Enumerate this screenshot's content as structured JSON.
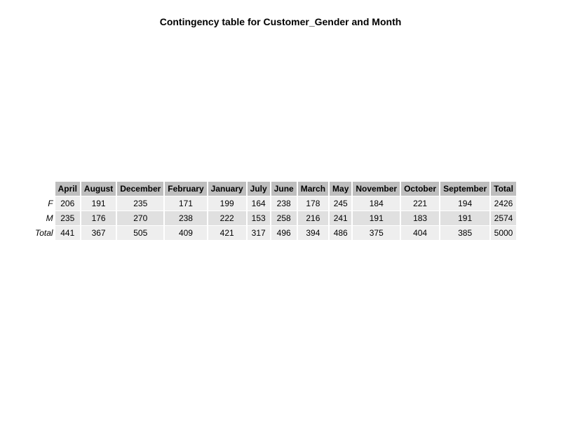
{
  "chart_data": {
    "type": "table",
    "title": "Contingency table for Customer_Gender and Month",
    "columns": [
      "April",
      "August",
      "December",
      "February",
      "January",
      "July",
      "June",
      "March",
      "May",
      "November",
      "October",
      "September",
      "Total"
    ],
    "rows": [
      {
        "label": "F",
        "values": [
          206,
          191,
          235,
          171,
          199,
          164,
          238,
          178,
          245,
          184,
          221,
          194,
          2426
        ]
      },
      {
        "label": "M",
        "values": [
          235,
          176,
          270,
          238,
          222,
          153,
          258,
          216,
          241,
          191,
          183,
          191,
          2574
        ]
      },
      {
        "label": "Total",
        "values": [
          441,
          367,
          505,
          409,
          421,
          317,
          496,
          394,
          486,
          375,
          404,
          385,
          5000
        ]
      }
    ]
  },
  "colors": {
    "header_bg": "#bebebe",
    "row_light_bg": "#eeeeee",
    "row_dark_bg": "#e0e0e0"
  }
}
